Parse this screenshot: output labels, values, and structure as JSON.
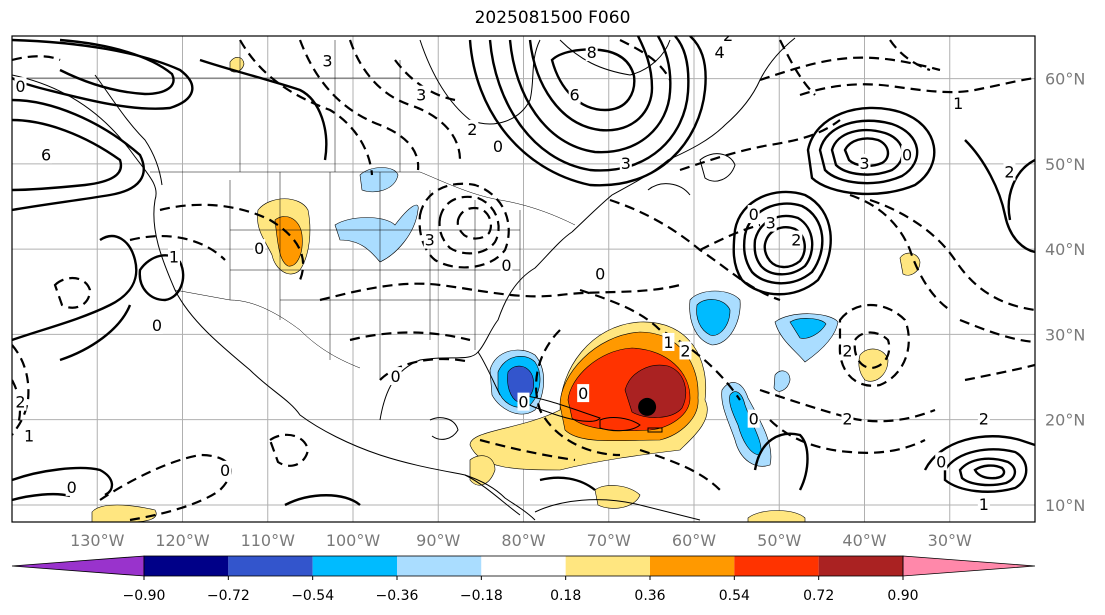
{
  "title": "2025081500 F060",
  "map": {
    "lon_range": [
      -140,
      -20
    ],
    "lat_range": [
      8,
      65
    ],
    "lon_ticks": [
      {
        "value": -130,
        "label": "130°W"
      },
      {
        "value": -120,
        "label": "120°W"
      },
      {
        "value": -110,
        "label": "110°W"
      },
      {
        "value": -100,
        "label": "100°W"
      },
      {
        "value": -90,
        "label": "90°W"
      },
      {
        "value": -80,
        "label": "80°W"
      },
      {
        "value": -70,
        "label": "70°W"
      },
      {
        "value": -60,
        "label": "60°W"
      },
      {
        "value": -50,
        "label": "50°W"
      },
      {
        "value": -40,
        "label": "40°W"
      },
      {
        "value": -30,
        "label": "30°W"
      }
    ],
    "lat_ticks": [
      {
        "value": 60,
        "label": "60°N"
      },
      {
        "value": 50,
        "label": "50°N"
      },
      {
        "value": 40,
        "label": "40°N"
      },
      {
        "value": 30,
        "label": "30°N"
      },
      {
        "value": 20,
        "label": "20°N"
      },
      {
        "value": 10,
        "label": "10°N"
      }
    ],
    "grid": true,
    "storm_marker": {
      "lon": -65.5,
      "lat": 21.5
    }
  },
  "colorbar": {
    "colors": [
      "#9933cc",
      "#000088",
      "#3355cc",
      "#00bbff",
      "#aaddff",
      "#ffffff",
      "#ffe680",
      "#ff9900",
      "#ff3300",
      "#aa2222",
      "#ff88aa"
    ],
    "ticks": [
      "−0.90",
      "−0.72",
      "−0.54",
      "−0.36",
      "−0.18",
      "0.18",
      "0.36",
      "0.54",
      "0.72",
      "0.90"
    ]
  },
  "contour_labels": [
    {
      "text": "0",
      "lon": -139,
      "lat": 59
    },
    {
      "text": "6",
      "lon": -136,
      "lat": 51
    },
    {
      "text": "1",
      "lon": -121,
      "lat": 39
    },
    {
      "text": "0",
      "lon": -123,
      "lat": 31
    },
    {
      "text": "3",
      "lon": -103,
      "lat": 62
    },
    {
      "text": "3",
      "lon": -92,
      "lat": 58
    },
    {
      "text": "2",
      "lon": -86,
      "lat": 54
    },
    {
      "text": "0",
      "lon": -83,
      "lat": 52
    },
    {
      "text": "6",
      "lon": -74,
      "lat": 58
    },
    {
      "text": "3",
      "lon": -68,
      "lat": 50
    },
    {
      "text": "8",
      "lon": -72,
      "lat": 63
    },
    {
      "text": "3",
      "lon": -91,
      "lat": 41
    },
    {
      "text": "0",
      "lon": -82,
      "lat": 38
    },
    {
      "text": "0",
      "lon": -71,
      "lat": 37
    },
    {
      "text": "0",
      "lon": -111,
      "lat": 40
    },
    {
      "text": "2",
      "lon": -61,
      "lat": 28
    },
    {
      "text": "1",
      "lon": -63,
      "lat": 29
    },
    {
      "text": "0",
      "lon": -73,
      "lat": 23
    },
    {
      "text": "0",
      "lon": -80,
      "lat": 22
    },
    {
      "text": "2",
      "lon": -48,
      "lat": 41
    },
    {
      "text": "3",
      "lon": -51,
      "lat": 43
    },
    {
      "text": "0",
      "lon": -53,
      "lat": 44
    },
    {
      "text": "3",
      "lon": -40,
      "lat": 50
    },
    {
      "text": "0",
      "lon": -35,
      "lat": 51
    },
    {
      "text": "1",
      "lon": -29,
      "lat": 57
    },
    {
      "text": "2",
      "lon": -23,
      "lat": 49
    },
    {
      "text": "2",
      "lon": -42,
      "lat": 28
    },
    {
      "text": "2",
      "lon": -42,
      "lat": 20
    },
    {
      "text": "0",
      "lon": -53,
      "lat": 20
    },
    {
      "text": "2",
      "lon": -26,
      "lat": 20
    },
    {
      "text": "1",
      "lon": -26,
      "lat": 10
    },
    {
      "text": "0",
      "lon": -31,
      "lat": 15
    },
    {
      "text": "0",
      "lon": -133,
      "lat": 12
    },
    {
      "text": "0",
      "lon": -115,
      "lat": 14
    },
    {
      "text": "0",
      "lon": -95,
      "lat": 25
    },
    {
      "text": "1",
      "lon": -138,
      "lat": 18
    },
    {
      "text": "2",
      "lon": -139,
      "lat": 22
    },
    {
      "text": "2",
      "lon": -56,
      "lat": 65
    },
    {
      "text": "4",
      "lon": -57,
      "lat": 63
    }
  ]
}
